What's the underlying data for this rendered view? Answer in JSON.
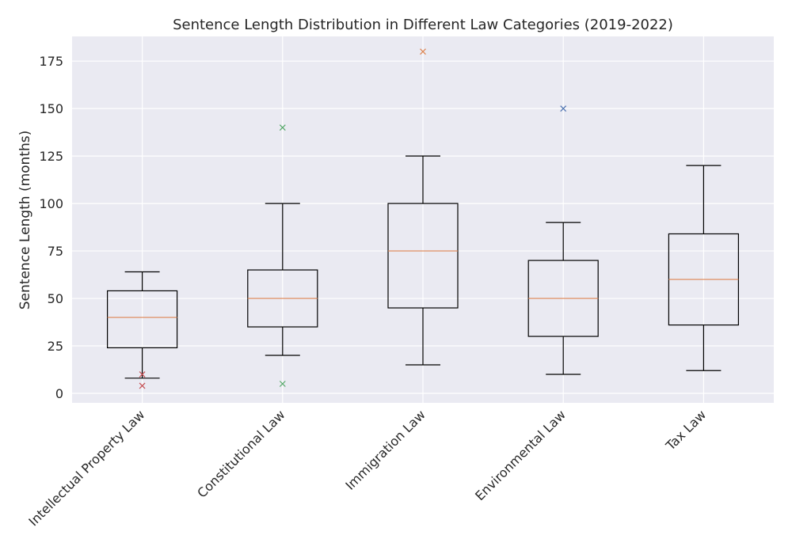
{
  "chart_data": {
    "type": "box",
    "title": "Sentence Length Distribution in Different Law Categories (2019-2022)",
    "xlabel": "",
    "ylabel": "Sentence Length (months)",
    "ylim": [
      -5,
      188
    ],
    "yticks": [
      0,
      25,
      50,
      75,
      100,
      125,
      150,
      175
    ],
    "grid": true,
    "categories": [
      "Intellectual Property Law",
      "Constitutional Law",
      "Immigration Law",
      "Environmental Law",
      "Tax Law"
    ],
    "boxes": [
      {
        "whisker_low": 8,
        "q1": 24,
        "median": 40,
        "q3": 54,
        "whisker_high": 64,
        "outliers": [
          4,
          10
        ],
        "outlier_color": "#c44e52"
      },
      {
        "whisker_low": 20,
        "q1": 35,
        "median": 50,
        "q3": 65,
        "whisker_high": 100,
        "outliers": [
          5,
          140
        ],
        "outlier_color": "#55a868"
      },
      {
        "whisker_low": 15,
        "q1": 45,
        "median": 75,
        "q3": 100,
        "whisker_high": 125,
        "outliers": [
          180
        ],
        "outlier_color": "#dd8452"
      },
      {
        "whisker_low": 10,
        "q1": 30,
        "median": 50,
        "q3": 70,
        "whisker_high": 90,
        "outliers": [
          150
        ],
        "outlier_color": "#4c72b0"
      },
      {
        "whisker_low": 12,
        "q1": 36,
        "median": 60,
        "q3": 84,
        "whisker_high": 120,
        "outliers": [],
        "outlier_color": "#4c72b0"
      }
    ],
    "colors": {
      "background": "#eaeaf2",
      "grid": "#ffffff",
      "median": "#dd8452",
      "box": "#000000"
    }
  }
}
